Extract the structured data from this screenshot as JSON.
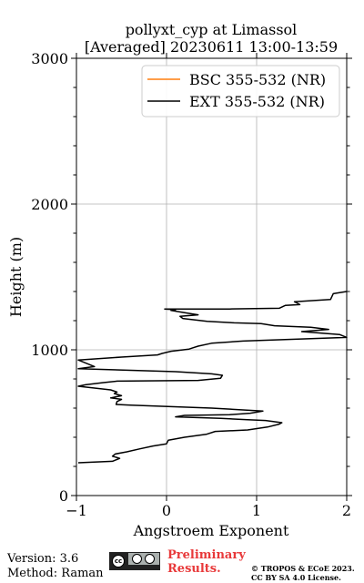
{
  "chart_data": {
    "type": "line",
    "title": [
      "pollyxt_cyp at Limassol",
      "[Averaged] 20230611 13:00-13:59"
    ],
    "xlabel": "Angstroem Exponent",
    "ylabel": "Height (m)",
    "xlim": [
      -1,
      2
    ],
    "ylim": [
      0,
      3000
    ],
    "xticks": [
      -1,
      0,
      1,
      2
    ],
    "yticks": [
      0,
      1000,
      2000,
      3000
    ],
    "xtick_labels": [
      "−1",
      "0",
      "1",
      "2"
    ],
    "ytick_labels": [
      "0",
      "1000",
      "2000",
      "3000"
    ],
    "grid": true,
    "legend_position": "top-right",
    "series": [
      {
        "name": "BSC 355-532 (NR)",
        "color": "#ff7f0e",
        "points": []
      },
      {
        "name": "EXT 355-532 (NR)",
        "color": "#000000",
        "points": [
          [
            -0.98,
            225
          ],
          [
            -0.6,
            235
          ],
          [
            -0.52,
            255
          ],
          [
            -0.6,
            270
          ],
          [
            -0.57,
            285
          ],
          [
            -0.44,
            300
          ],
          [
            -0.3,
            320
          ],
          [
            -0.15,
            340
          ],
          [
            0.0,
            355
          ],
          [
            0.02,
            380
          ],
          [
            0.2,
            400
          ],
          [
            0.44,
            420
          ],
          [
            0.54,
            440
          ],
          [
            0.9,
            450
          ],
          [
            1.12,
            470
          ],
          [
            1.25,
            490
          ],
          [
            1.28,
            500
          ],
          [
            1.1,
            515
          ],
          [
            0.9,
            520
          ],
          [
            0.6,
            530
          ],
          [
            0.1,
            540
          ],
          [
            0.2,
            550
          ],
          [
            0.7,
            555
          ],
          [
            0.93,
            565
          ],
          [
            1.07,
            580
          ],
          [
            0.5,
            600
          ],
          [
            -0.4,
            620
          ],
          [
            -0.56,
            625
          ],
          [
            -0.55,
            645
          ],
          [
            -0.5,
            660
          ],
          [
            -0.62,
            670
          ],
          [
            -0.5,
            685
          ],
          [
            -0.58,
            700
          ],
          [
            -0.55,
            710
          ],
          [
            -0.62,
            725
          ],
          [
            -0.98,
            750
          ],
          [
            -0.9,
            760
          ],
          [
            -0.7,
            775
          ],
          [
            -0.55,
            785
          ],
          [
            0.35,
            790
          ],
          [
            0.6,
            805
          ],
          [
            0.62,
            825
          ],
          [
            0.5,
            835
          ],
          [
            0.1,
            850
          ],
          [
            -0.98,
            870
          ],
          [
            -0.8,
            885
          ],
          [
            -0.98,
            930
          ],
          [
            -0.5,
            950
          ],
          [
            -0.1,
            965
          ],
          [
            -0.05,
            975
          ],
          [
            0.05,
            990
          ],
          [
            0.25,
            1005
          ],
          [
            0.35,
            1025
          ],
          [
            0.5,
            1045
          ],
          [
            0.85,
            1060
          ],
          [
            2.0,
            1085
          ],
          [
            1.92,
            1105
          ],
          [
            1.5,
            1125
          ],
          [
            1.8,
            1140
          ],
          [
            1.6,
            1155
          ],
          [
            1.2,
            1165
          ],
          [
            1.05,
            1180
          ],
          [
            0.75,
            1185
          ],
          [
            0.45,
            1195
          ],
          [
            0.18,
            1215
          ],
          [
            0.15,
            1230
          ],
          [
            0.35,
            1240
          ],
          [
            0.2,
            1255
          ],
          [
            0.05,
            1270
          ],
          [
            0.1,
            1275
          ],
          [
            -0.02,
            1280
          ],
          [
            0.7,
            1280
          ],
          [
            1.25,
            1285
          ],
          [
            1.32,
            1305
          ],
          [
            1.48,
            1310
          ],
          [
            1.42,
            1330
          ],
          [
            1.82,
            1345
          ],
          [
            1.85,
            1385
          ],
          [
            2.0,
            1400
          ]
        ]
      }
    ]
  },
  "footer": {
    "version": "Version: 3.6",
    "method": "Method: Raman",
    "preliminary_line1": "Preliminary",
    "preliminary_line2": "Results.",
    "copyright_line1": "© TROPOS & ECoE 2023.",
    "copyright_line2": "CC BY SA 4.0 License.",
    "license_badge_icon": "cc-by-sa-badge"
  }
}
